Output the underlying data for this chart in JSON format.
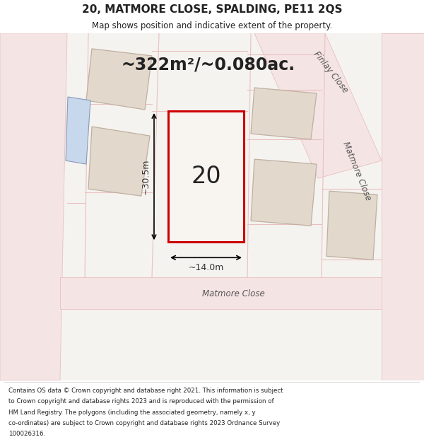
{
  "title": "20, MATMORE CLOSE, SPALDING, PE11 2QS",
  "subtitle": "Map shows position and indicative extent of the property.",
  "area_text": "~322m²/~0.080ac.",
  "number_label": "20",
  "dim_width": "~14.0m",
  "dim_height": "~30.5m",
  "footer_lines": [
    "Contains OS data © Crown copyright and database right 2021. This information is subject",
    "to Crown copyright and database rights 2023 and is reproduced with the permission of",
    "HM Land Registry. The polygons (including the associated geometry, namely x, y",
    "co-ordinates) are subject to Crown copyright and database rights 2023 Ordnance Survey",
    "100026316."
  ],
  "map_bg": "#f5f3ef",
  "road_color": "#e8c0c0",
  "road_fill": "#f5e4e4",
  "plot_outline_color": "#cc0000",
  "building_fill": "#e2d8cc",
  "building_outline": "#c0b0a0",
  "blue_fill": "#c8d8ec",
  "blue_outline": "#8899bb",
  "text_color": "#222222",
  "dim_color": "#333333",
  "label_color": "#555555",
  "finlay_close_label": "Finlay Close",
  "matmore_close_label": "Matmore Close",
  "matmore_close_label2": "Matmore Close"
}
